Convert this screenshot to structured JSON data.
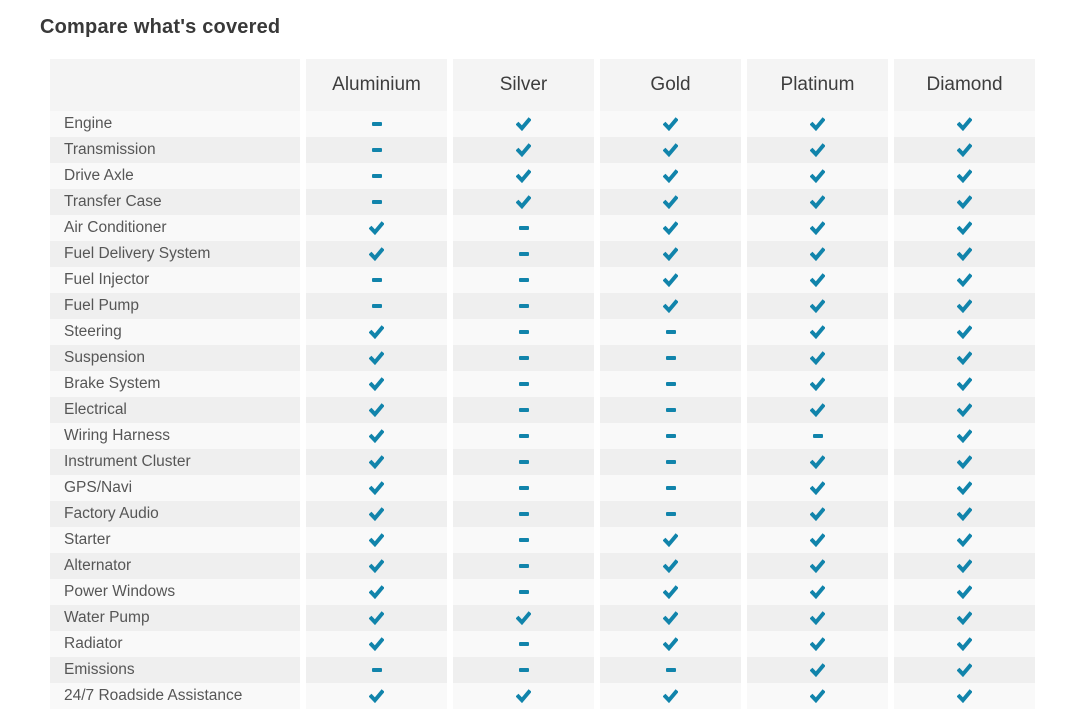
{
  "title": "Compare what's covered",
  "colors": {
    "check": "#1184ab",
    "row_odd_bg": "#f9f9f9",
    "row_even_bg": "#efefef",
    "header_bg": "#f4f4f4",
    "title_text": "#393939",
    "label_text": "#565656"
  },
  "table": {
    "columns": [
      "Aluminium",
      "Silver",
      "Gold",
      "Platinum",
      "Diamond"
    ],
    "legend": {
      "covered_icon": "check-icon",
      "not_covered_icon": "dash-icon"
    },
    "rows": [
      {
        "label": "Engine",
        "covered": [
          false,
          true,
          true,
          true,
          true
        ]
      },
      {
        "label": "Transmission",
        "covered": [
          false,
          true,
          true,
          true,
          true
        ]
      },
      {
        "label": "Drive Axle",
        "covered": [
          false,
          true,
          true,
          true,
          true
        ]
      },
      {
        "label": "Transfer Case",
        "covered": [
          false,
          true,
          true,
          true,
          true
        ]
      },
      {
        "label": "Air Conditioner",
        "covered": [
          true,
          false,
          true,
          true,
          true
        ]
      },
      {
        "label": "Fuel Delivery System",
        "covered": [
          true,
          false,
          true,
          true,
          true
        ]
      },
      {
        "label": "Fuel Injector",
        "covered": [
          false,
          false,
          true,
          true,
          true
        ]
      },
      {
        "label": "Fuel Pump",
        "covered": [
          false,
          false,
          true,
          true,
          true
        ]
      },
      {
        "label": "Steering",
        "covered": [
          true,
          false,
          false,
          true,
          true
        ]
      },
      {
        "label": "Suspension",
        "covered": [
          true,
          false,
          false,
          true,
          true
        ]
      },
      {
        "label": "Brake System",
        "covered": [
          true,
          false,
          false,
          true,
          true
        ]
      },
      {
        "label": "Electrical",
        "covered": [
          true,
          false,
          false,
          true,
          true
        ]
      },
      {
        "label": "Wiring Harness",
        "covered": [
          true,
          false,
          false,
          false,
          true
        ]
      },
      {
        "label": "Instrument Cluster",
        "covered": [
          true,
          false,
          false,
          true,
          true
        ]
      },
      {
        "label": "GPS/Navi",
        "covered": [
          true,
          false,
          false,
          true,
          true
        ]
      },
      {
        "label": "Factory Audio",
        "covered": [
          true,
          false,
          false,
          true,
          true
        ]
      },
      {
        "label": "Starter",
        "covered": [
          true,
          false,
          true,
          true,
          true
        ]
      },
      {
        "label": "Alternator",
        "covered": [
          true,
          false,
          true,
          true,
          true
        ]
      },
      {
        "label": "Power Windows",
        "covered": [
          true,
          false,
          true,
          true,
          true
        ]
      },
      {
        "label": "Water Pump",
        "covered": [
          true,
          true,
          true,
          true,
          true
        ]
      },
      {
        "label": "Radiator",
        "covered": [
          true,
          false,
          true,
          true,
          true
        ]
      },
      {
        "label": "Emissions",
        "covered": [
          false,
          false,
          false,
          true,
          true
        ]
      },
      {
        "label": "24/7 Roadside Assistance",
        "covered": [
          true,
          true,
          true,
          true,
          true
        ]
      }
    ]
  }
}
